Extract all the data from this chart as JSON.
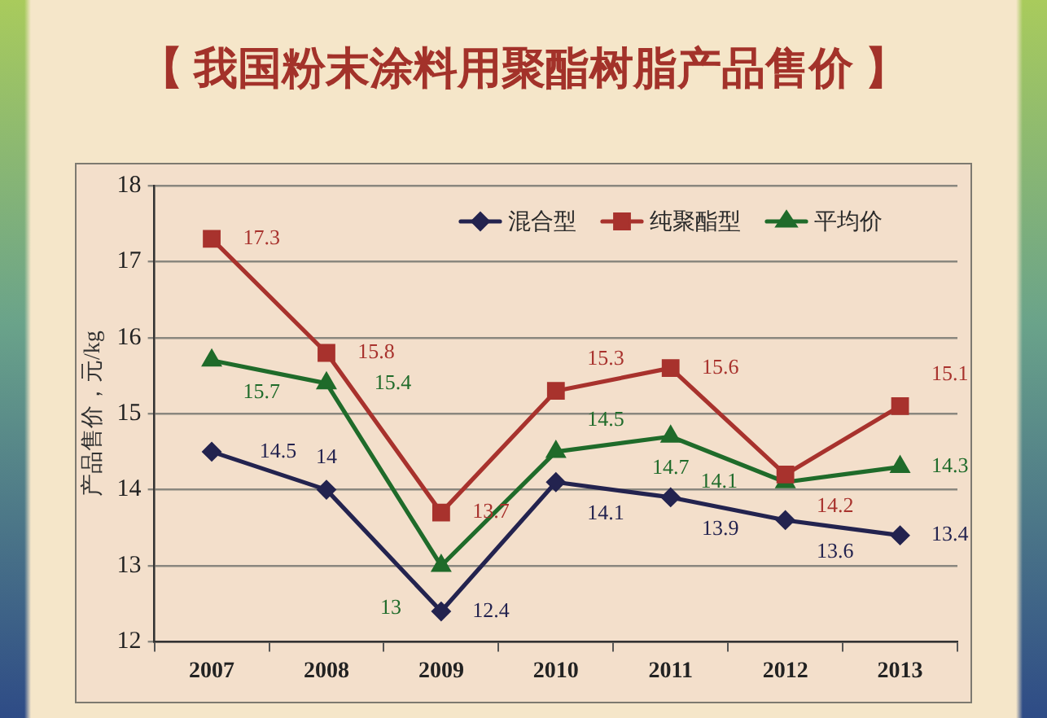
{
  "chart_data": {
    "type": "line",
    "title": "【 我国粉末涂料用聚酯树脂产品售价 】",
    "ylabel": "产品售价，元/kg",
    "categories": [
      "2007",
      "2008",
      "2009",
      "2010",
      "2011",
      "2012",
      "2013"
    ],
    "series": [
      {
        "name": "混合型",
        "color": "#23234f",
        "marker": "diamond",
        "values": [
          14.5,
          14,
          12.4,
          14.1,
          13.9,
          13.6,
          13.4
        ]
      },
      {
        "name": "纯聚酯型",
        "color": "#a8322d",
        "marker": "square",
        "values": [
          17.3,
          15.8,
          13.7,
          15.3,
          15.6,
          14.2,
          15.1
        ]
      },
      {
        "name": "平均价",
        "color": "#1f6b2a",
        "marker": "triangle",
        "values": [
          15.7,
          15.4,
          13,
          14.5,
          14.7,
          14.1,
          14.3
        ]
      }
    ],
    "ylim": [
      12,
      18
    ],
    "yticks": [
      12,
      13,
      14,
      15,
      16,
      17,
      18
    ],
    "grid": "y",
    "legend": "top right",
    "data_labels": true
  }
}
